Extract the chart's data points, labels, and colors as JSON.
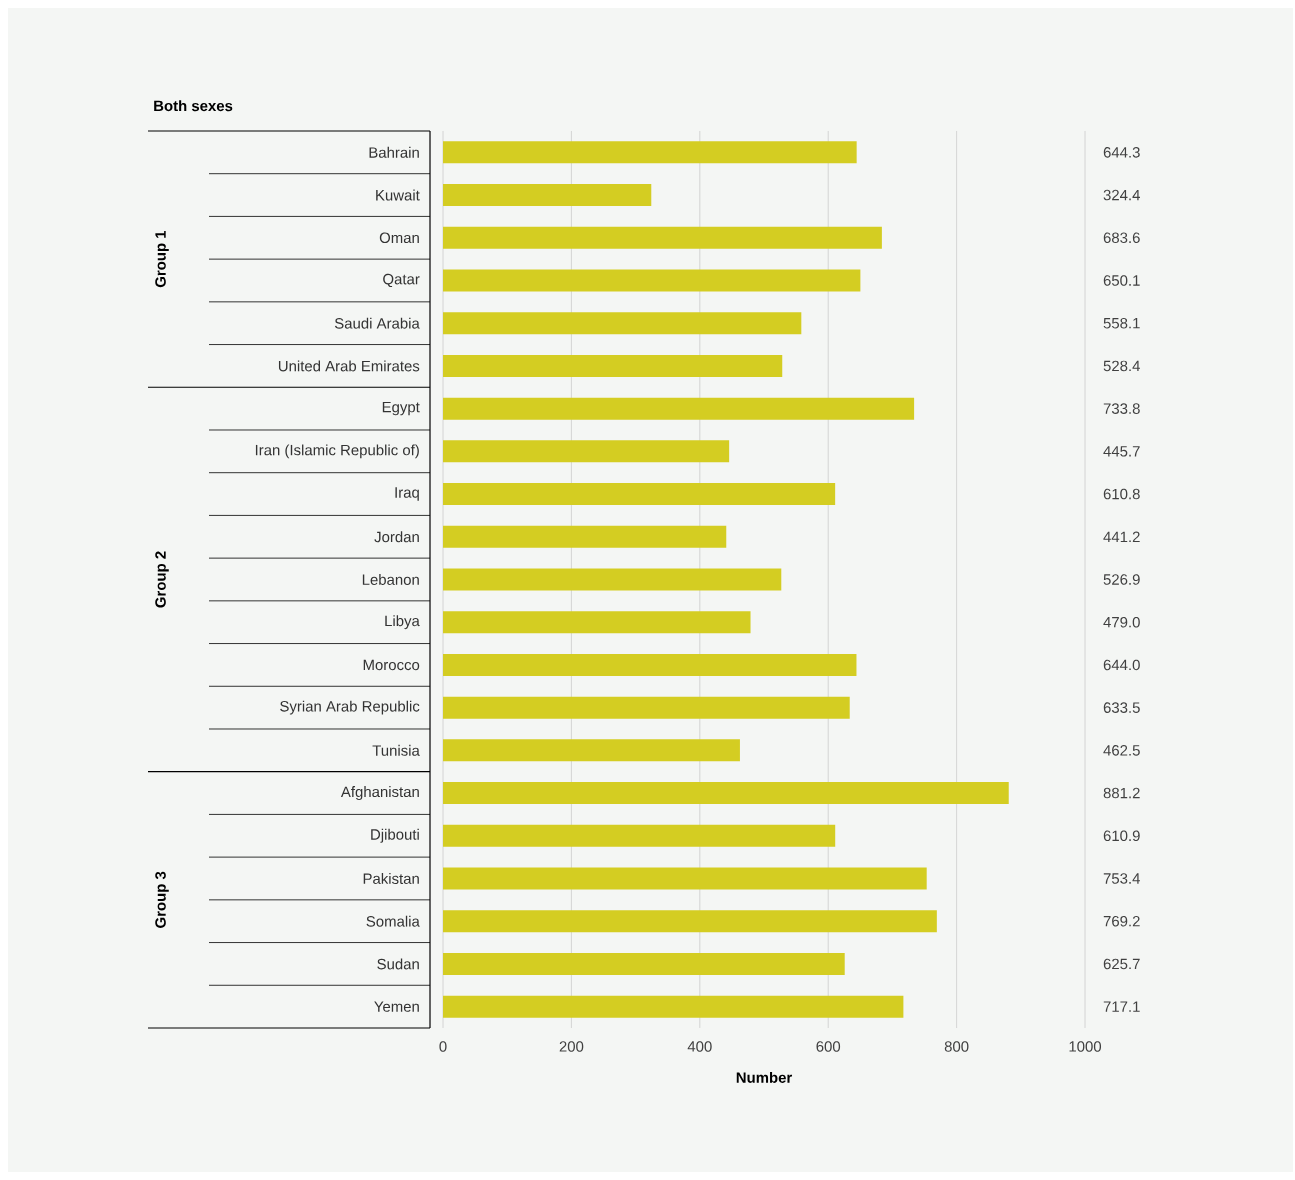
{
  "chart_data": {
    "type": "bar",
    "orientation": "horizontal",
    "title": "Both sexes",
    "xlabel": "Number",
    "categories": [
      "Bahrain",
      "Kuwait",
      "Oman",
      "Qatar",
      "Saudi Arabia",
      "United Arab Emirates",
      "Egypt",
      "Iran (Islamic Republic of)",
      "Iraq",
      "Jordan",
      "Lebanon",
      "Libya",
      "Morocco",
      "Syrian Arab Republic",
      "Tunisia",
      "Afghanistan",
      "Djibouti",
      "Pakistan",
      "Somalia",
      "Sudan",
      "Yemen"
    ],
    "values": [
      644.3,
      324.4,
      683.6,
      650.1,
      558.1,
      528.4,
      733.8,
      445.7,
      610.8,
      441.2,
      526.9,
      479.0,
      644.0,
      633.5,
      462.5,
      881.2,
      610.9,
      753.4,
      769.2,
      625.7,
      717.1
    ],
    "value_labels": [
      "644.3",
      "324.4",
      "683.6",
      "650.1",
      "558.1",
      "528.4",
      "733.8",
      "445.7",
      "610.8",
      "441.2",
      "526.9",
      "479.0",
      "644.0",
      "633.5",
      "462.5",
      "881.2",
      "610.9",
      "753.4",
      "769.2",
      "625.7",
      "717.1"
    ],
    "color": "#d4cd22",
    "xlim": [
      0,
      1000
    ],
    "xticks": [
      0,
      200,
      400,
      600,
      800,
      1000
    ],
    "grid": "x",
    "annotations": [
      "Group 1",
      "Group 2",
      "Group 3"
    ]
  }
}
